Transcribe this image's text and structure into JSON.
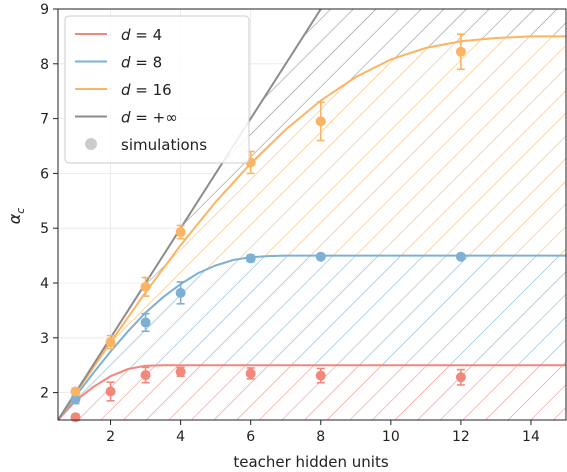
{
  "chart_data": {
    "type": "line",
    "xlabel": "teacher hidden units",
    "ylabel": "α",
    "ylabel_sub": "c",
    "xlim": [
      0.5,
      15
    ],
    "ylim": [
      1.5,
      9
    ],
    "xticks": [
      2,
      4,
      6,
      8,
      10,
      12,
      14
    ],
    "yticks": [
      2,
      3,
      4,
      5,
      6,
      7,
      8,
      9
    ],
    "grid": true,
    "legend_position": "top-left",
    "series": [
      {
        "name": "d = 4",
        "color": "#f4877b",
        "curve_x": [
          0.5,
          1,
          1.5,
          2,
          2.5,
          3,
          3.5,
          4,
          5,
          6,
          7,
          8,
          10,
          12,
          14,
          15
        ],
        "curve_y": [
          1.5,
          1.85,
          2.1,
          2.3,
          2.43,
          2.49,
          2.5,
          2.5,
          2.5,
          2.5,
          2.5,
          2.5,
          2.5,
          2.5,
          2.5,
          2.5
        ],
        "sim_x": [
          1,
          2,
          3,
          4,
          6,
          8,
          12
        ],
        "sim_y": [
          1.55,
          2.02,
          2.32,
          2.38,
          2.35,
          2.31,
          2.28
        ],
        "sim_err": [
          0.06,
          0.17,
          0.14,
          0.08,
          0.1,
          0.13,
          0.14
        ]
      },
      {
        "name": "d = 8",
        "color": "#7eb0d4",
        "curve_x": [
          0.5,
          1,
          1.5,
          2,
          2.5,
          3,
          3.5,
          4,
          4.5,
          5,
          5.5,
          6,
          6.5,
          7,
          8,
          10,
          12,
          14,
          15
        ],
        "curve_y": [
          1.5,
          1.93,
          2.35,
          2.75,
          3.12,
          3.46,
          3.74,
          3.98,
          4.18,
          4.32,
          4.42,
          4.47,
          4.49,
          4.5,
          4.5,
          4.5,
          4.5,
          4.5,
          4.5
        ],
        "sim_x": [
          1,
          3,
          4,
          6,
          8,
          12
        ],
        "sim_y": [
          1.88,
          3.28,
          3.82,
          4.45,
          4.48,
          4.48
        ],
        "sim_err": [
          0.08,
          0.16,
          0.2,
          0.06,
          0.04,
          0.03
        ]
      },
      {
        "name": "d = 16",
        "color": "#fdb462",
        "curve_x": [
          0.5,
          1,
          2,
          3,
          4,
          5,
          6,
          7,
          8,
          9,
          10,
          11,
          12,
          13,
          14,
          15
        ],
        "curve_y": [
          1.5,
          1.98,
          2.92,
          3.83,
          4.69,
          5.48,
          6.18,
          6.8,
          7.33,
          7.76,
          8.08,
          8.29,
          8.41,
          8.47,
          8.5,
          8.5
        ],
        "sim_x": [
          1,
          2,
          3,
          4,
          6,
          8,
          12
        ],
        "sim_y": [
          2.02,
          2.92,
          3.93,
          4.93,
          6.2,
          6.95,
          8.22
        ],
        "sim_err": [
          0.06,
          0.12,
          0.17,
          0.12,
          0.2,
          0.35,
          0.32
        ]
      },
      {
        "name": "d = +∞",
        "color": "#8c8c8c",
        "curve_x": [
          0.5,
          8
        ],
        "curve_y": [
          1.5,
          9
        ],
        "sim_x": [],
        "sim_y": [],
        "sim_err": []
      }
    ],
    "simulations_label": "simulations",
    "simulations_marker_color": "#cccccc"
  }
}
